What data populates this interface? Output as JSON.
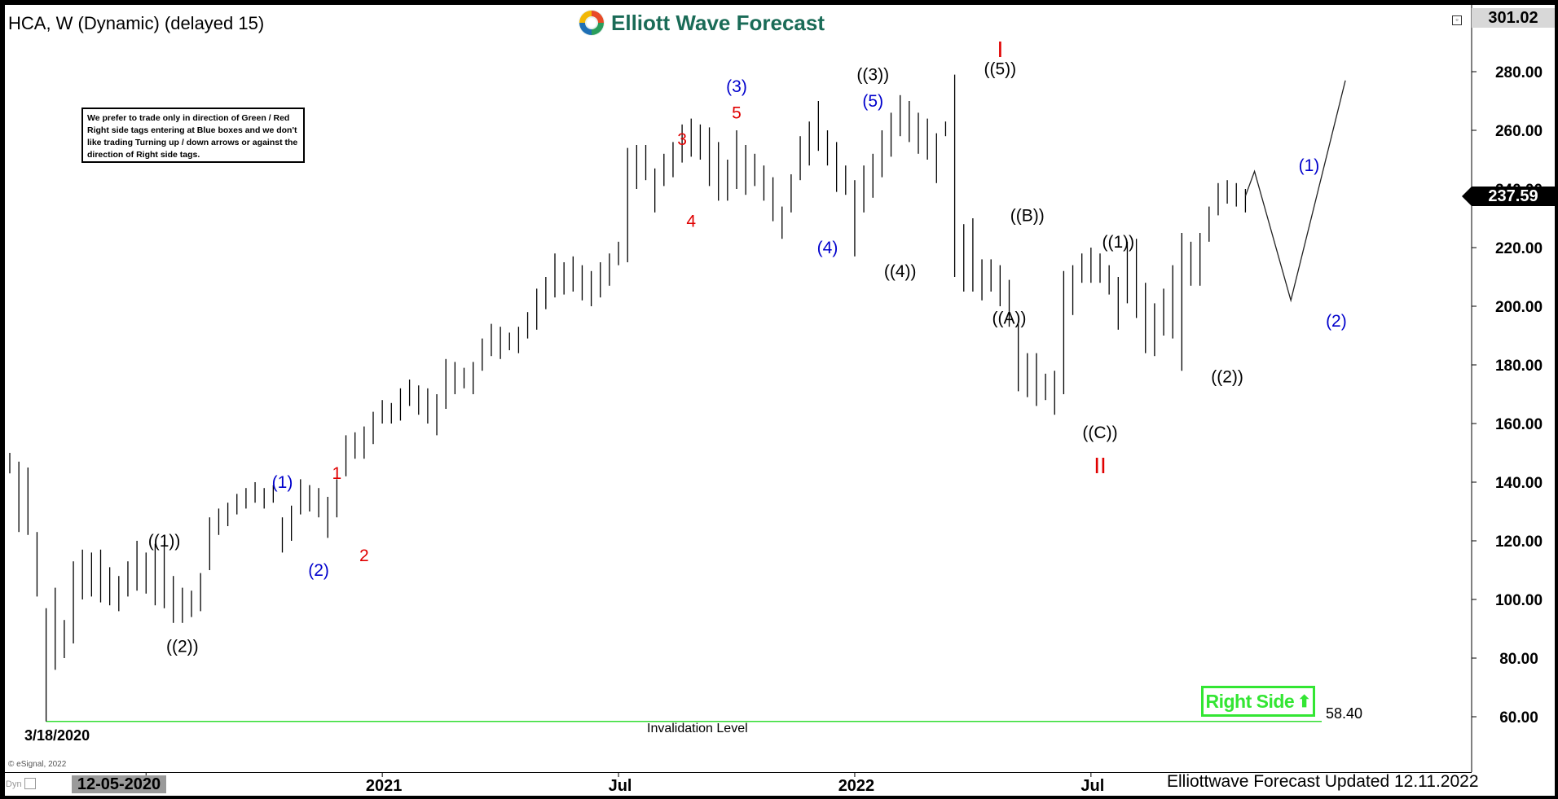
{
  "header": {
    "title": "HCA, W (Dynamic) (delayed 15)",
    "brand": "Elliott Wave Forecast",
    "note": "We prefer to trade only in direction of Green / Red Right side tags entering at Blue boxes and we don't like trading Turning up / down arrows or against the direction of Right side tags."
  },
  "price_axis": {
    "top_price": "301.02",
    "last_price": "237.59",
    "hidden_label": "240.00"
  },
  "right_side": {
    "label": "Right Side",
    "arrow": "⬆"
  },
  "invalidation": {
    "value": "58.40",
    "label": "Invalidation Level"
  },
  "start_date": "3/18/2020",
  "credit": "© eSignal, 2022",
  "time_axis": {
    "cursor_date": "12-05-2020",
    "dyn": "Dyn"
  },
  "footer": {
    "updated": "Elliottwave Forecast Updated 12.11.2022"
  },
  "colors": {
    "bars": "#000000",
    "wave_red": "#e00000",
    "wave_blue": "#0000cc",
    "wave_black": "#000000",
    "right_side_green": "#33e633",
    "invalidation_line": "#33dd33",
    "brand_teal": "#1a6b57"
  },
  "chart_data": {
    "type": "bar",
    "subtype": "ohlc",
    "symbol": "HCA",
    "interval": "W",
    "y_ticks": [
      60,
      80,
      100,
      120,
      140,
      160,
      180,
      200,
      220,
      240,
      260,
      280
    ],
    "y_tick_labels": [
      "60.00",
      "80.00",
      "100.00",
      "120.00",
      "140.00",
      "160.00",
      "180.00",
      "200.00",
      "220.00",
      "240.00",
      "260.00",
      "280.00"
    ],
    "x_ticks": [
      {
        "label": "Jul",
        "week": 15
      },
      {
        "label": "2021",
        "week": 41
      },
      {
        "label": "Jul",
        "week": 67
      },
      {
        "label": "2022",
        "week": 93
      },
      {
        "label": "Jul",
        "week": 119
      }
    ],
    "bars": [
      [
        0,
        143,
        150
      ],
      [
        1,
        123,
        147
      ],
      [
        2,
        122,
        145
      ],
      [
        3,
        101,
        123
      ],
      [
        4,
        58.4,
        97
      ],
      [
        5,
        76,
        104
      ],
      [
        6,
        80,
        93
      ],
      [
        7,
        85,
        113
      ],
      [
        8,
        100,
        117
      ],
      [
        9,
        101,
        116
      ],
      [
        10,
        99,
        117
      ],
      [
        11,
        98,
        111
      ],
      [
        12,
        96,
        108
      ],
      [
        13,
        101,
        113
      ],
      [
        14,
        103,
        120
      ],
      [
        15,
        102,
        116
      ],
      [
        16,
        98,
        119
      ],
      [
        17,
        97,
        120
      ],
      [
        18,
        92,
        108
      ],
      [
        19,
        92,
        104
      ],
      [
        20,
        94,
        103
      ],
      [
        21,
        96,
        109
      ],
      [
        22,
        110,
        128
      ],
      [
        23,
        122,
        131
      ],
      [
        24,
        125,
        133
      ],
      [
        25,
        129,
        136
      ],
      [
        26,
        131,
        138
      ],
      [
        27,
        133,
        140
      ],
      [
        28,
        131,
        138
      ],
      [
        29,
        133,
        139
      ],
      [
        30,
        116,
        128
      ],
      [
        31,
        120,
        132
      ],
      [
        32,
        129,
        141
      ],
      [
        33,
        130,
        139
      ],
      [
        34,
        128,
        138
      ],
      [
        35,
        121,
        135
      ],
      [
        36,
        128,
        141
      ],
      [
        37,
        142,
        156
      ],
      [
        38,
        148,
        157
      ],
      [
        39,
        148,
        159
      ],
      [
        40,
        153,
        164
      ],
      [
        41,
        160,
        168
      ],
      [
        42,
        160,
        167
      ],
      [
        43,
        161,
        172
      ],
      [
        44,
        166,
        175
      ],
      [
        45,
        163,
        173
      ],
      [
        46,
        160,
        172
      ],
      [
        47,
        156,
        170
      ],
      [
        48,
        165,
        182
      ],
      [
        49,
        170,
        181
      ],
      [
        50,
        172,
        179
      ],
      [
        51,
        170,
        181
      ],
      [
        52,
        178,
        189
      ],
      [
        53,
        183,
        194
      ],
      [
        54,
        182,
        193
      ],
      [
        55,
        185,
        191
      ],
      [
        56,
        184,
        193
      ],
      [
        57,
        189,
        198
      ],
      [
        58,
        192,
        206
      ],
      [
        59,
        199,
        210
      ],
      [
        60,
        203,
        218
      ],
      [
        61,
        204,
        215
      ],
      [
        62,
        205,
        217
      ],
      [
        63,
        202,
        214
      ],
      [
        64,
        200,
        212
      ],
      [
        65,
        203,
        215
      ],
      [
        66,
        207,
        218
      ],
      [
        67,
        214,
        222
      ],
      [
        68,
        215,
        254
      ],
      [
        69,
        240,
        255
      ],
      [
        70,
        243,
        255
      ],
      [
        71,
        232,
        247
      ],
      [
        72,
        241,
        252
      ],
      [
        73,
        244,
        256
      ],
      [
        74,
        249,
        262
      ],
      [
        75,
        251,
        264
      ],
      [
        76,
        250,
        262
      ],
      [
        77,
        241,
        261
      ],
      [
        78,
        236,
        256
      ],
      [
        79,
        236,
        250
      ],
      [
        80,
        240,
        260
      ],
      [
        81,
        238,
        255
      ],
      [
        82,
        241,
        252
      ],
      [
        83,
        236,
        248
      ],
      [
        84,
        229,
        244
      ],
      [
        85,
        223,
        234
      ],
      [
        86,
        232,
        245
      ],
      [
        87,
        243,
        258
      ],
      [
        88,
        248,
        263
      ],
      [
        89,
        253,
        270
      ],
      [
        90,
        248,
        260
      ],
      [
        91,
        239,
        256
      ],
      [
        92,
        238,
        248
      ],
      [
        93,
        217,
        243
      ],
      [
        94,
        232,
        248
      ],
      [
        95,
        237,
        252
      ],
      [
        96,
        244,
        260
      ],
      [
        97,
        251,
        266
      ],
      [
        98,
        258,
        272
      ],
      [
        99,
        256,
        270
      ],
      [
        100,
        252,
        266
      ],
      [
        101,
        250,
        264
      ],
      [
        102,
        242,
        259
      ],
      [
        103,
        258,
        263
      ],
      [
        104,
        210,
        279
      ],
      [
        105,
        205,
        228
      ],
      [
        106,
        205,
        230
      ],
      [
        107,
        202,
        216
      ],
      [
        108,
        205,
        216
      ],
      [
        109,
        200,
        214
      ],
      [
        110,
        193,
        209
      ],
      [
        111,
        171,
        194
      ],
      [
        112,
        169,
        184
      ],
      [
        113,
        166,
        184
      ],
      [
        114,
        168,
        177
      ],
      [
        115,
        163,
        178
      ],
      [
        116,
        170,
        212
      ],
      [
        117,
        197,
        214
      ],
      [
        118,
        208,
        218
      ],
      [
        119,
        208,
        220
      ],
      [
        120,
        208,
        218
      ],
      [
        121,
        204,
        214
      ],
      [
        122,
        192,
        210
      ],
      [
        123,
        201,
        222
      ],
      [
        124,
        196,
        223
      ],
      [
        125,
        184,
        208
      ],
      [
        126,
        183,
        201
      ],
      [
        127,
        190,
        206
      ],
      [
        128,
        189,
        214
      ],
      [
        129,
        178,
        225
      ],
      [
        130,
        207,
        222
      ],
      [
        131,
        207,
        225
      ],
      [
        132,
        222,
        234
      ],
      [
        133,
        231,
        242
      ],
      [
        134,
        235,
        243
      ],
      [
        135,
        234,
        242
      ],
      [
        136,
        232,
        240
      ]
    ],
    "projection": [
      [
        136,
        237.59
      ],
      [
        137,
        246
      ],
      [
        141,
        202
      ],
      [
        147,
        277
      ]
    ],
    "invalidation_level": 58.4,
    "wave_labels": [
      {
        "text": "((1))",
        "week": 17,
        "price": 120,
        "color": "black"
      },
      {
        "text": "((2))",
        "week": 19,
        "price": 84,
        "color": "black"
      },
      {
        "text": "(1)",
        "week": 30,
        "price": 140,
        "color": "blue"
      },
      {
        "text": "(2)",
        "week": 34,
        "price": 110,
        "color": "blue"
      },
      {
        "text": "1",
        "week": 36,
        "price": 143,
        "color": "red"
      },
      {
        "text": "2",
        "week": 39,
        "price": 115,
        "color": "red"
      },
      {
        "text": "3",
        "week": 74,
        "price": 257,
        "color": "red"
      },
      {
        "text": "4",
        "week": 75,
        "price": 229,
        "color": "red"
      },
      {
        "text": "(3)",
        "week": 80,
        "price": 275,
        "color": "blue"
      },
      {
        "text": "5",
        "week": 80,
        "price": 266,
        "color": "red"
      },
      {
        "text": "(4)",
        "week": 90,
        "price": 220,
        "color": "blue"
      },
      {
        "text": "((3))",
        "week": 95,
        "price": 279,
        "color": "black"
      },
      {
        "text": "(5)",
        "week": 95,
        "price": 270,
        "color": "blue"
      },
      {
        "text": "((4))",
        "week": 98,
        "price": 212,
        "color": "black"
      },
      {
        "text": "I",
        "week": 109,
        "price": 287,
        "color": "red"
      },
      {
        "text": "((5))",
        "week": 109,
        "price": 281,
        "color": "black"
      },
      {
        "text": "((B))",
        "week": 112,
        "price": 231,
        "color": "black"
      },
      {
        "text": "((A))",
        "week": 110,
        "price": 196,
        "color": "black"
      },
      {
        "text": "((1))",
        "week": 122,
        "price": 222,
        "color": "black"
      },
      {
        "text": "((C))",
        "week": 120,
        "price": 157,
        "color": "black"
      },
      {
        "text": "II",
        "week": 120,
        "price": 145,
        "color": "red"
      },
      {
        "text": "((2))",
        "week": 134,
        "price": 176,
        "color": "black"
      },
      {
        "text": "(1)",
        "week": 143,
        "price": 248,
        "color": "blue"
      },
      {
        "text": "(2)",
        "week": 146,
        "price": 195,
        "color": "blue"
      }
    ]
  }
}
